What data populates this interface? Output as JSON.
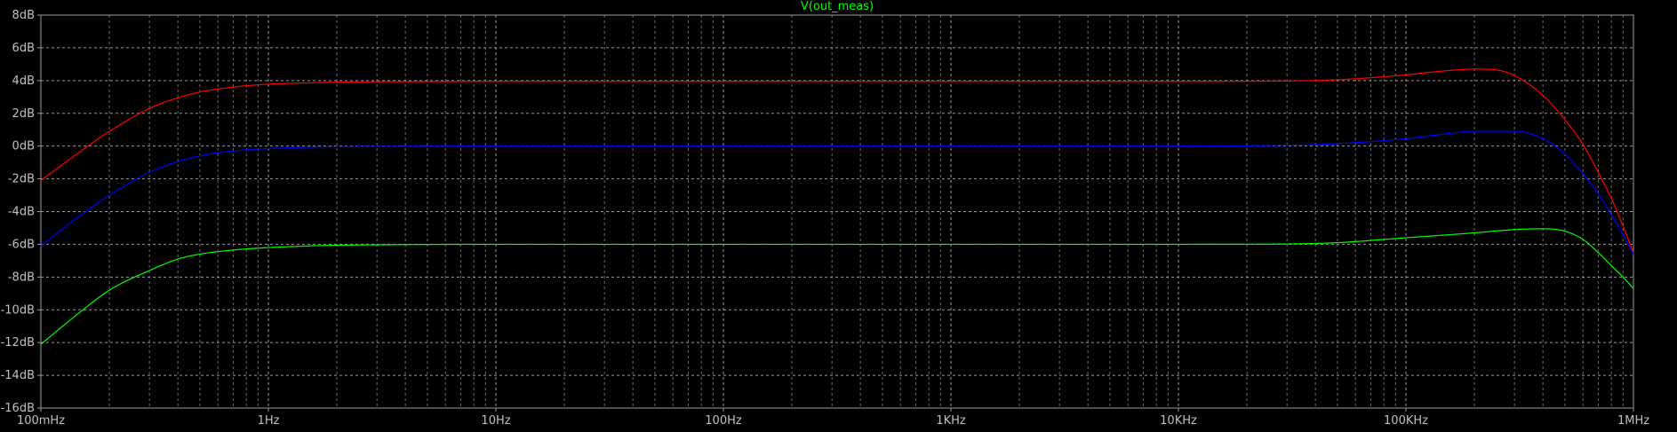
{
  "chart_data": {
    "type": "line",
    "title": "V(out_meas)",
    "x_scale": "log",
    "xlim": [
      0.1,
      1000000
    ],
    "ylim": [
      -16,
      8
    ],
    "x_tick_labels": [
      {
        "value": 0.1,
        "label": "100mHz"
      },
      {
        "value": 1,
        "label": "1Hz"
      },
      {
        "value": 10,
        "label": "10Hz"
      },
      {
        "value": 100,
        "label": "100Hz"
      },
      {
        "value": 1000,
        "label": "1KHz"
      },
      {
        "value": 10000,
        "label": "10KHz"
      },
      {
        "value": 100000,
        "label": "100KHz"
      },
      {
        "value": 1000000,
        "label": "1MHz"
      }
    ],
    "y_tick_labels": [
      {
        "value": 8,
        "label": "8dB"
      },
      {
        "value": 6,
        "label": "6dB"
      },
      {
        "value": 4,
        "label": "4dB"
      },
      {
        "value": 2,
        "label": "2dB"
      },
      {
        "value": 0,
        "label": "0dB"
      },
      {
        "value": -2,
        "label": "-2dB"
      },
      {
        "value": -4,
        "label": "-4dB"
      },
      {
        "value": -6,
        "label": "-6dB"
      },
      {
        "value": -8,
        "label": "-8dB"
      },
      {
        "value": -10,
        "label": "-10dB"
      },
      {
        "value": -12,
        "label": "-12dB"
      },
      {
        "value": -14,
        "label": "-14dB"
      },
      {
        "value": -16,
        "label": "-16dB"
      }
    ],
    "grid": true,
    "background_color": "#000000",
    "grid_color": "#9a9a9a",
    "title_color": "#00ff00",
    "series": [
      {
        "color": "#ff0000",
        "x": [
          0.1,
          0.15,
          0.2,
          0.3,
          0.4,
          0.5,
          0.7,
          1,
          1.5,
          2,
          3,
          5,
          10,
          100,
          1000,
          10000,
          20000,
          50000,
          100000,
          150000,
          200000,
          250000,
          300000,
          400000,
          500000,
          600000,
          700000,
          800000,
          900000,
          1000000
        ],
        "y": [
          -2.1,
          -0.3,
          0.9,
          2.3,
          2.95,
          3.3,
          3.6,
          3.78,
          3.86,
          3.9,
          3.93,
          3.94,
          3.95,
          3.95,
          3.95,
          3.95,
          3.96,
          4.05,
          4.35,
          4.6,
          4.7,
          4.65,
          4.3,
          3.1,
          1.6,
          0.1,
          -1.6,
          -3.2,
          -4.9,
          -6.5
        ]
      },
      {
        "color": "#0000ff",
        "x": [
          0.1,
          0.15,
          0.2,
          0.3,
          0.4,
          0.5,
          0.7,
          1,
          1.5,
          2,
          3,
          5,
          10,
          100,
          1000,
          10000,
          30000,
          50000,
          100000,
          150000,
          200000,
          300000,
          400000,
          500000,
          600000,
          700000,
          800000,
          900000,
          1000000
        ],
        "y": [
          -6.1,
          -4.2,
          -3.0,
          -1.6,
          -0.95,
          -0.6,
          -0.3,
          -0.15,
          -0.07,
          -0.04,
          -0.02,
          -0.01,
          0,
          0,
          0,
          0,
          0.05,
          0.15,
          0.45,
          0.75,
          0.9,
          0.9,
          0.45,
          -0.5,
          -1.7,
          -2.9,
          -4.2,
          -5.4,
          -6.6
        ]
      },
      {
        "color": "#00ff00",
        "x": [
          0.1,
          0.15,
          0.2,
          0.3,
          0.4,
          0.5,
          0.7,
          1,
          1.5,
          2,
          3,
          5,
          10,
          100,
          1000,
          10000,
          30000,
          50000,
          100000,
          200000,
          300000,
          400000,
          500000,
          600000,
          700000,
          800000,
          900000,
          1000000
        ],
        "y": [
          -12.1,
          -10.1,
          -8.8,
          -7.6,
          -6.9,
          -6.6,
          -6.35,
          -6.2,
          -6.1,
          -6.06,
          -6.03,
          -6.01,
          -6.0,
          -6.0,
          -6.0,
          -6.0,
          -5.98,
          -5.9,
          -5.6,
          -5.3,
          -5.1,
          -5.05,
          -5.2,
          -5.7,
          -6.5,
          -7.3,
          -8.0,
          -8.7
        ]
      }
    ]
  }
}
